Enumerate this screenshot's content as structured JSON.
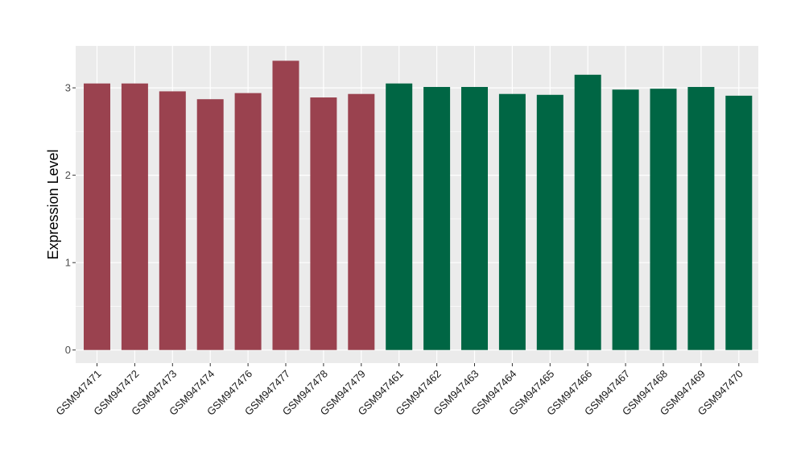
{
  "chart_data": {
    "type": "bar",
    "title": "",
    "xlabel": "",
    "ylabel": "Expression Level",
    "ylim": [
      -0.15,
      3.48
    ],
    "yticks": [
      0,
      1,
      2,
      3
    ],
    "grid": true,
    "categories": [
      "GSM947471",
      "GSM947472",
      "GSM947473",
      "GSM947474",
      "GSM947476",
      "GSM947477",
      "GSM947478",
      "GSM947479",
      "GSM947461",
      "GSM947462",
      "GSM947463",
      "GSM947464",
      "GSM947465",
      "GSM947466",
      "GSM947467",
      "GSM947468",
      "GSM947469",
      "GSM947470"
    ],
    "values": [
      3.05,
      3.05,
      2.96,
      2.87,
      2.94,
      3.31,
      2.89,
      2.93,
      3.05,
      3.01,
      3.01,
      2.93,
      2.92,
      3.15,
      2.98,
      2.99,
      3.01,
      2.91
    ],
    "groups": [
      1,
      1,
      1,
      1,
      1,
      1,
      1,
      1,
      2,
      2,
      2,
      2,
      2,
      2,
      2,
      2,
      2,
      2
    ],
    "colors": {
      "group1": "#9A424F",
      "group2": "#006644",
      "panel": "#EBEBEB",
      "grid": "#FFFFFF"
    }
  }
}
